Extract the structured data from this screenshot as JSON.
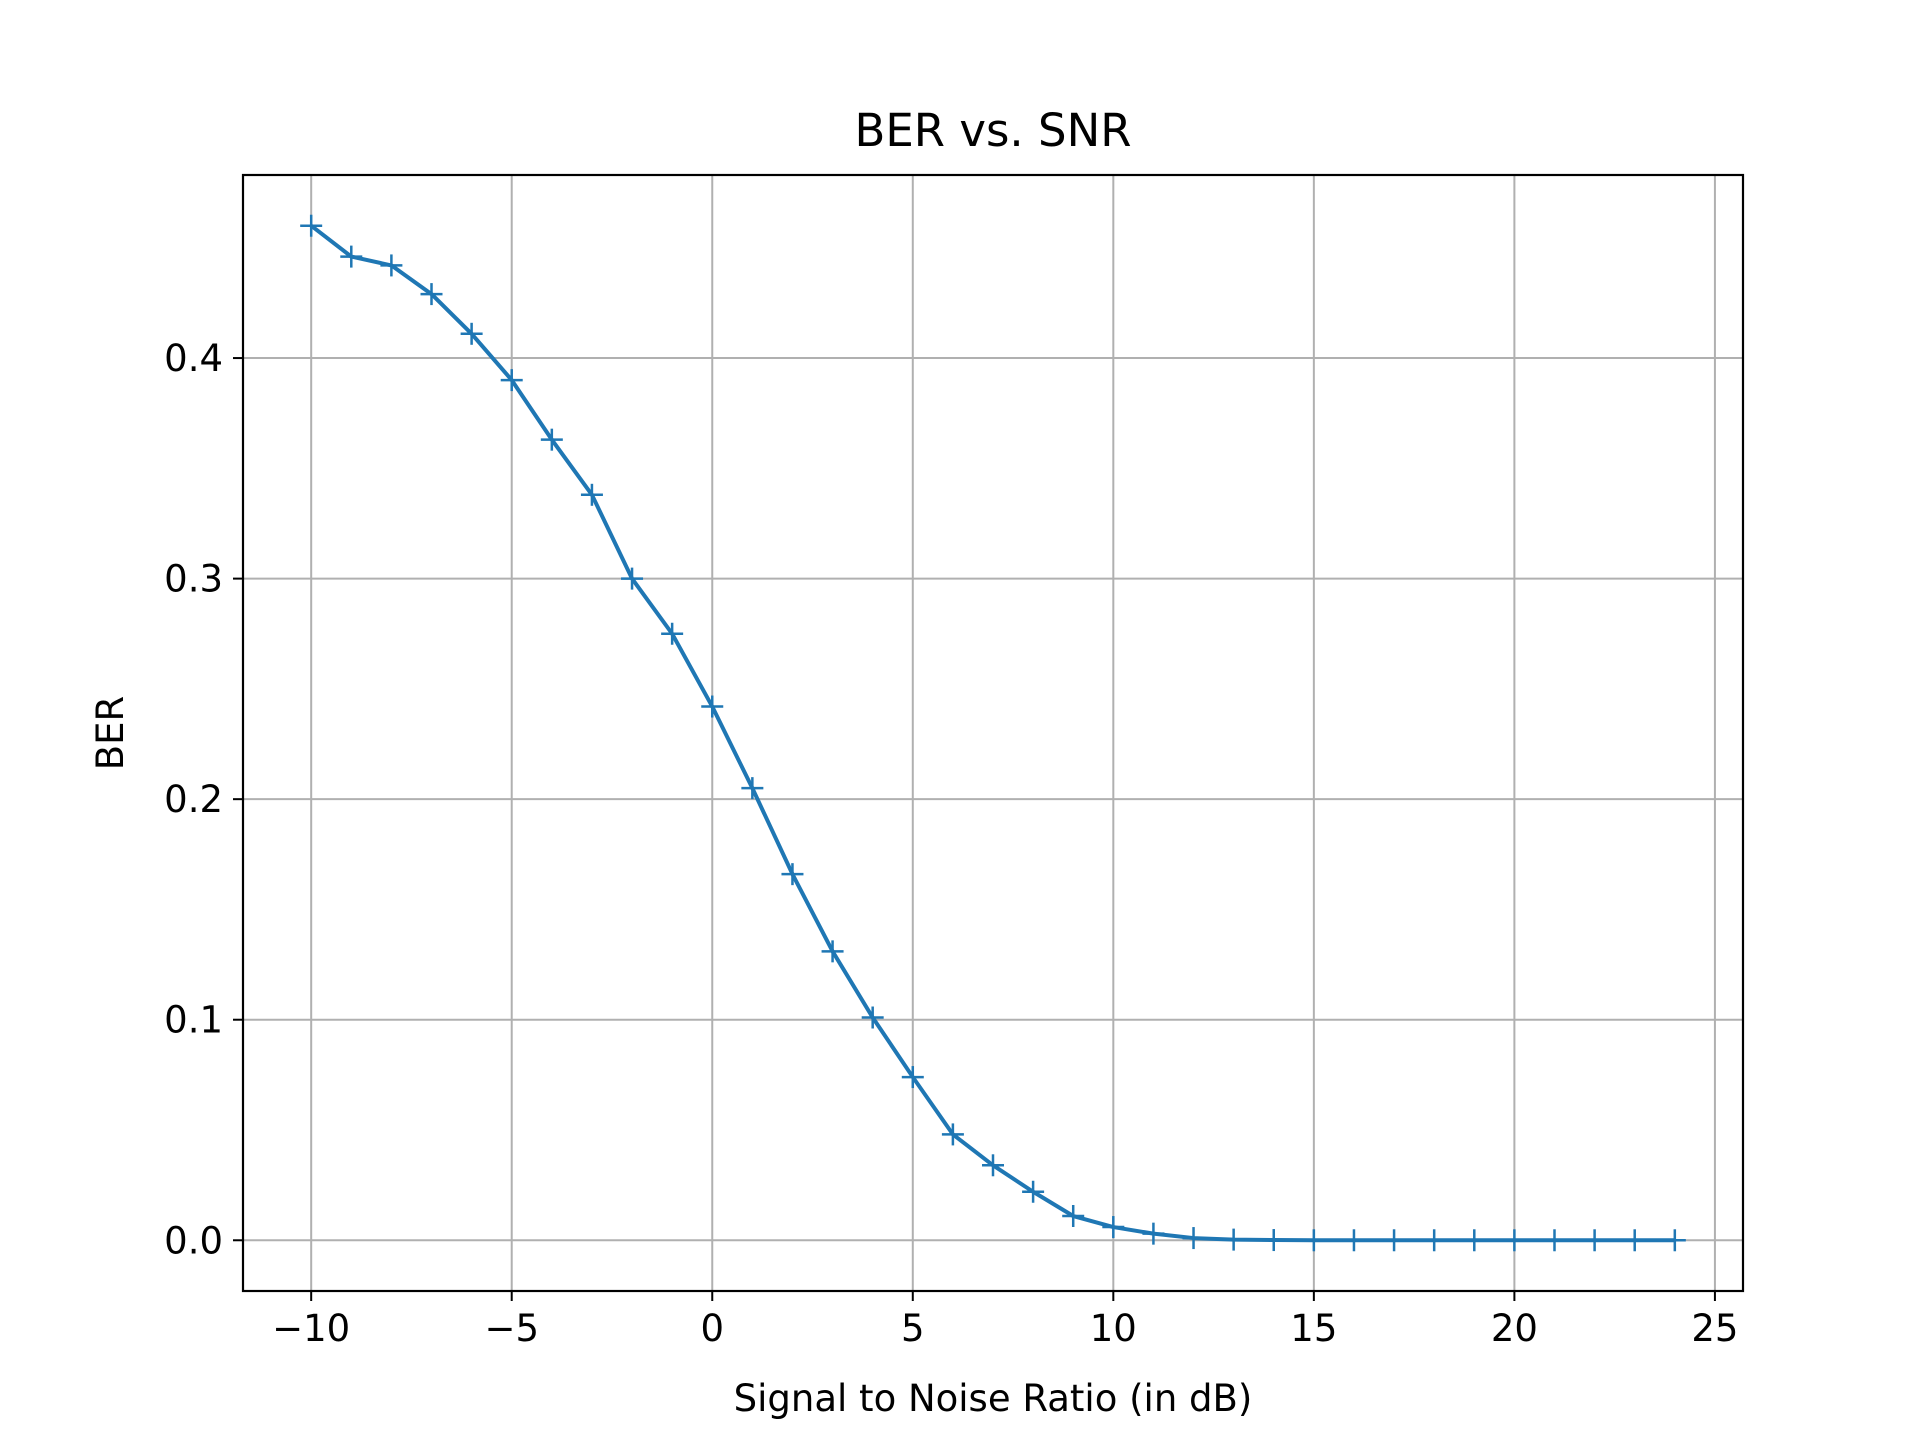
{
  "chart_data": {
    "type": "line",
    "title": "BER vs. SNR",
    "xlabel": "Signal to Noise Ratio (in dB)",
    "ylabel": "BER",
    "xlim": [
      -11.7,
      25.7
    ],
    "ylim": [
      -0.023,
      0.483
    ],
    "xticks": [
      -10,
      -5,
      0,
      5,
      10,
      15,
      20,
      25
    ],
    "xtick_labels": [
      "−10",
      "−5",
      "0",
      "5",
      "10",
      "15",
      "20",
      "25"
    ],
    "yticks": [
      0.0,
      0.1,
      0.2,
      0.3,
      0.4
    ],
    "ytick_labels": [
      "0.0",
      "0.1",
      "0.2",
      "0.3",
      "0.4"
    ],
    "grid": true,
    "marker": "+",
    "color": "#1f77b4",
    "grid_color": "#b0b0b0",
    "series": [
      {
        "x": [
          -10,
          -9,
          -8,
          -7,
          -6,
          -5,
          -4,
          -3,
          -2,
          -1,
          0,
          1,
          2,
          3,
          4,
          5,
          6,
          7,
          8,
          9,
          10,
          11,
          12,
          13,
          14,
          15,
          16,
          17,
          18,
          19,
          20,
          21,
          22,
          23,
          24
        ],
        "values": [
          0.46,
          0.446,
          0.442,
          0.429,
          0.411,
          0.39,
          0.363,
          0.338,
          0.3,
          0.275,
          0.242,
          0.205,
          0.166,
          0.131,
          0.101,
          0.074,
          0.048,
          0.034,
          0.022,
          0.011,
          0.006,
          0.003,
          0.001,
          0.0003,
          0.0001,
          0.0,
          0.0,
          0.0,
          0.0,
          0.0,
          0.0,
          0.0,
          0.0,
          0.0,
          0.0
        ]
      }
    ]
  }
}
